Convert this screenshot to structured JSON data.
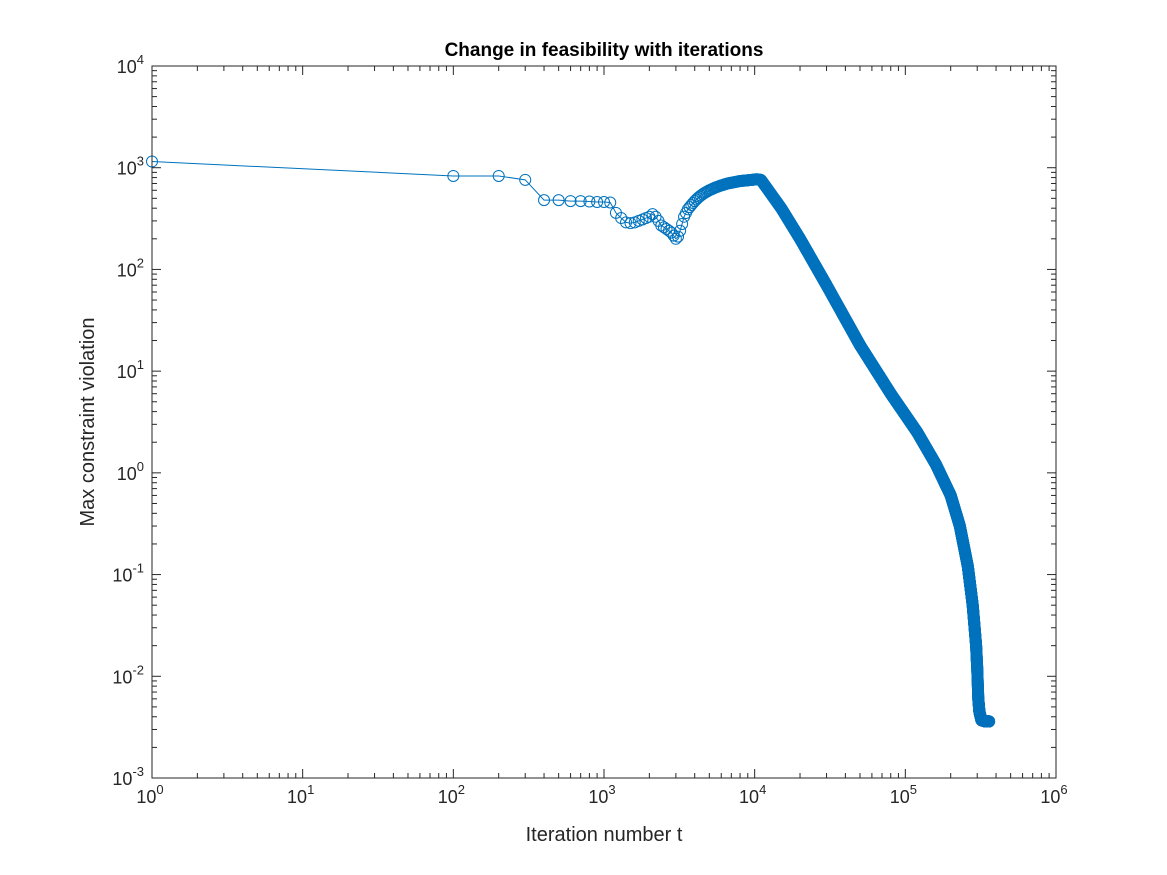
{
  "chart_data": {
    "type": "line",
    "title": "Change in feasibility with iterations",
    "xlabel": "Iteration number t",
    "ylabel": "Max constraint violation",
    "xscale": "log",
    "yscale": "log",
    "xlim": [
      1,
      1000000
    ],
    "ylim": [
      0.001,
      10000
    ],
    "x_ticks": [
      {
        "base": "10",
        "exp": "0"
      },
      {
        "base": "10",
        "exp": "1"
      },
      {
        "base": "10",
        "exp": "2"
      },
      {
        "base": "10",
        "exp": "3"
      },
      {
        "base": "10",
        "exp": "4"
      },
      {
        "base": "10",
        "exp": "5"
      },
      {
        "base": "10",
        "exp": "6"
      }
    ],
    "y_ticks": [
      {
        "base": "10",
        "exp": "-3"
      },
      {
        "base": "10",
        "exp": "-2"
      },
      {
        "base": "10",
        "exp": "-1"
      },
      {
        "base": "10",
        "exp": "0"
      },
      {
        "base": "10",
        "exp": "1"
      },
      {
        "base": "10",
        "exp": "2"
      },
      {
        "base": "10",
        "exp": "3"
      },
      {
        "base": "10",
        "exp": "4"
      }
    ],
    "grid": false,
    "marker": "circle",
    "series_color": "#0072BD",
    "series": [
      {
        "x": [
          1,
          100,
          200,
          300,
          400,
          500,
          600,
          700,
          800,
          900,
          1000,
          1100,
          1200,
          1300,
          1400,
          1500,
          1600,
          1700,
          1800,
          1900,
          2000,
          2100,
          2200,
          2300,
          2400,
          2500,
          2600,
          2700,
          2800,
          2900,
          3000,
          3100,
          3200,
          3300,
          3400,
          3600,
          3800,
          4000,
          4300,
          4600,
          5000,
          5500,
          6000,
          6600,
          7300,
          8000,
          8800,
          9600,
          10300,
          11000,
          15000,
          20000,
          30000,
          50000,
          80000,
          120000,
          160000,
          200000,
          230000,
          260000,
          280000,
          295000,
          300000,
          305000,
          310000,
          320000,
          340000,
          360000
        ],
        "y": [
          1150,
          830,
          830,
          760,
          480,
          480,
          470,
          470,
          465,
          460,
          460,
          455,
          360,
          320,
          290,
          285,
          290,
          300,
          310,
          320,
          330,
          350,
          330,
          300,
          270,
          260,
          250,
          240,
          230,
          215,
          200,
          210,
          240,
          280,
          330,
          390,
          430,
          470,
          520,
          560,
          600,
          640,
          670,
          700,
          720,
          740,
          750,
          760,
          770,
          760,
          400,
          200,
          70,
          18,
          6,
          2.5,
          1.2,
          0.6,
          0.3,
          0.12,
          0.05,
          0.02,
          0.012,
          0.006,
          0.0045,
          0.0037,
          0.0036,
          0.0036
        ]
      }
    ]
  }
}
